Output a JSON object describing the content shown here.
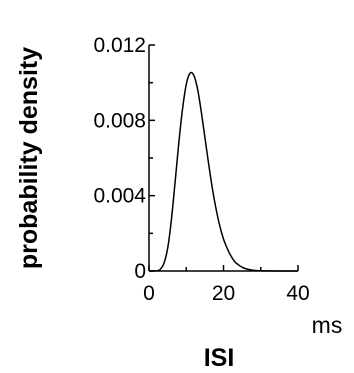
{
  "chart_data": {
    "type": "line",
    "title": "",
    "xlabel": "ISI",
    "xunit": "ms",
    "ylabel": "probability density",
    "xlim": [
      0,
      40
    ],
    "ylim": [
      0,
      0.012
    ],
    "xticks": [
      0,
      20,
      40
    ],
    "yticks": [
      0,
      0.004,
      0.008,
      0.012
    ],
    "xtick_labels": [
      "0",
      "20",
      "40"
    ],
    "ytick_labels": [
      "0",
      "0.004",
      "0.008",
      "0.012"
    ],
    "grid": false,
    "legend": "none",
    "series": [
      {
        "x": [
          0,
          2,
          3,
          4,
          5,
          6,
          7,
          8,
          9,
          10,
          11,
          12,
          13,
          14,
          15,
          16,
          17,
          18,
          19,
          20,
          21,
          22,
          23,
          24,
          25,
          26,
          28,
          30,
          35,
          40
        ],
        "y": [
          0,
          1e-05,
          8e-05,
          0.0004,
          0.0012,
          0.0027,
          0.0047,
          0.0068,
          0.0086,
          0.0099,
          0.0105,
          0.0104,
          0.0097,
          0.0085,
          0.0071,
          0.0057,
          0.0044,
          0.0033,
          0.0024,
          0.0017,
          0.0012,
          0.0008,
          0.0005,
          0.00033,
          0.0002,
          0.00012,
          4e-05,
          1e-05,
          0,
          0
        ]
      }
    ]
  }
}
